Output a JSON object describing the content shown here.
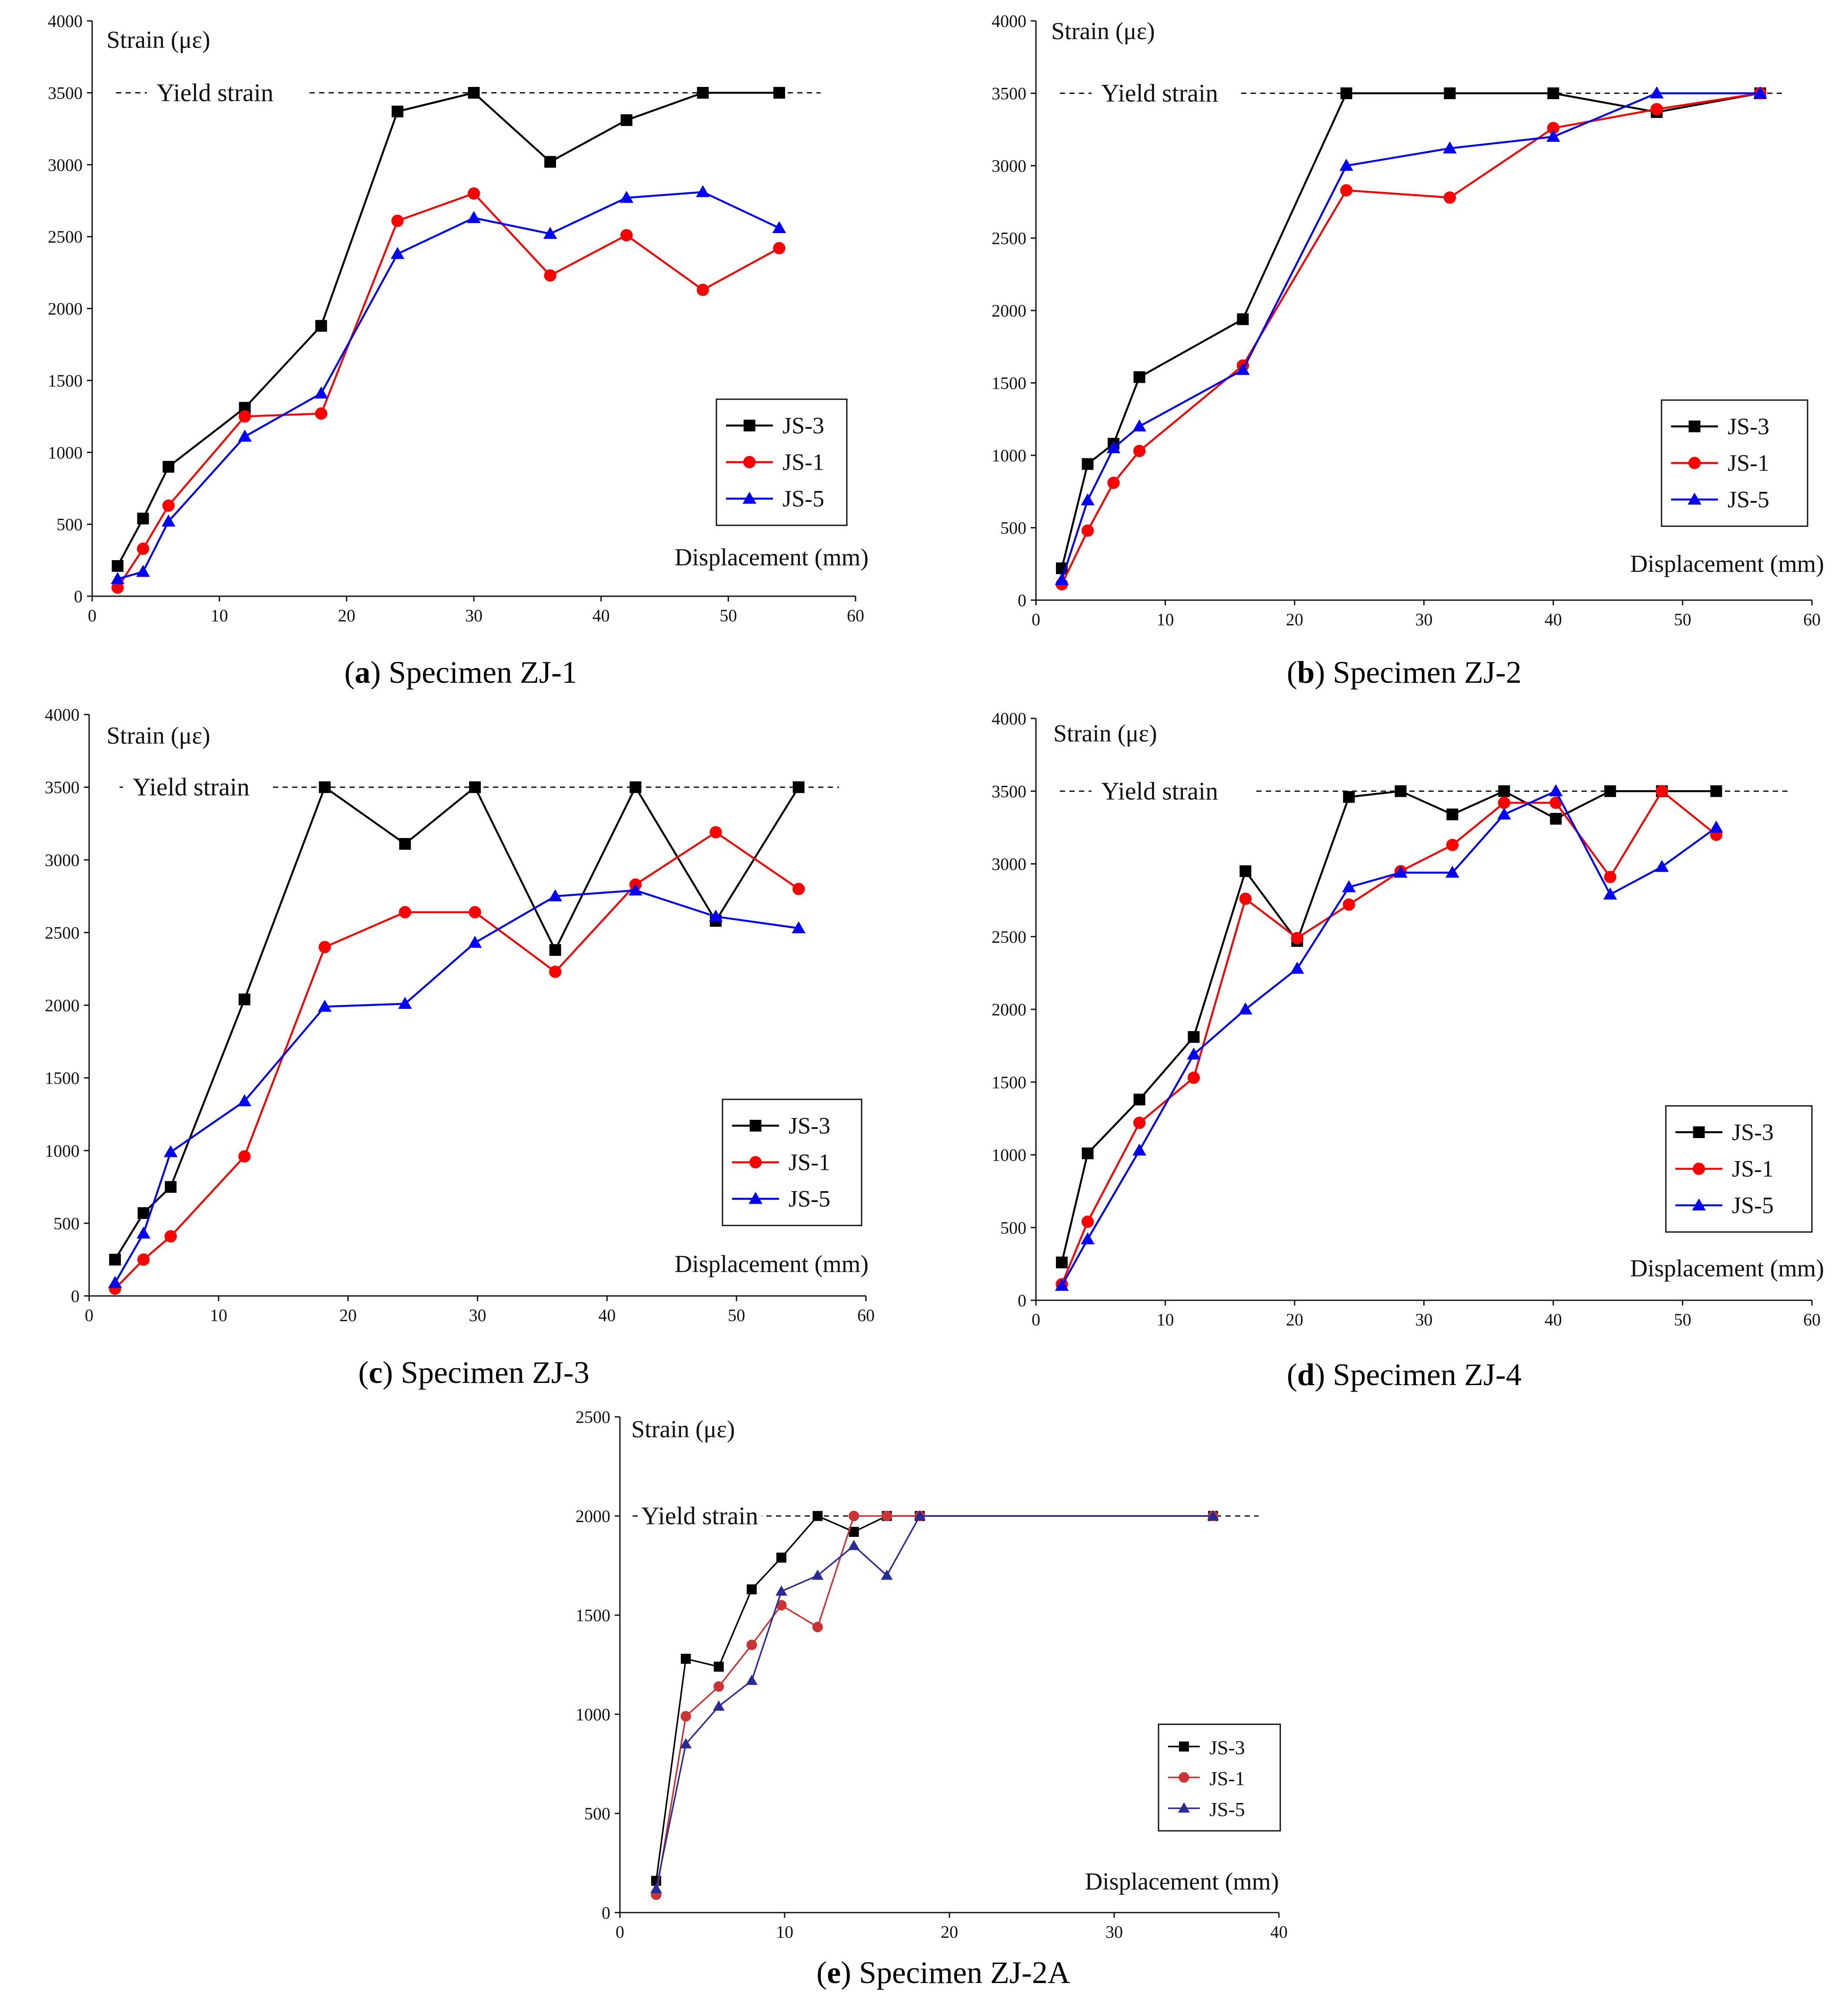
{
  "chart_data": [
    {
      "type": "line",
      "panel": "a",
      "caption_letter": "a",
      "caption_text": "Specimen ZJ-1",
      "ylabel": "Strain (με)",
      "xlabel": "Displacement (mm)",
      "yield_label": "Yield strain",
      "yield_value": 3500,
      "xlim": [
        0,
        60
      ],
      "ylim": [
        0,
        4000
      ],
      "xticks": [
        0,
        10,
        20,
        30,
        40,
        50,
        60
      ],
      "yticks": [
        0,
        500,
        1000,
        1500,
        2000,
        2500,
        3000,
        3500,
        4000
      ],
      "series": [
        {
          "name": "JS-3",
          "color": "#000000",
          "marker": "square",
          "x": [
            2,
            4,
            6,
            12,
            18,
            24,
            30,
            36,
            42,
            48,
            54
          ],
          "y": [
            210,
            540,
            900,
            1310,
            1880,
            3370,
            3500,
            3020,
            3310,
            3500,
            3500
          ]
        },
        {
          "name": "JS-1",
          "color": "#ff0000",
          "marker": "circle",
          "x": [
            2,
            4,
            6,
            12,
            18,
            24,
            30,
            36,
            42,
            48,
            54
          ],
          "y": [
            60,
            330,
            630,
            1250,
            1270,
            2610,
            2800,
            2230,
            2510,
            2130,
            2420
          ]
        },
        {
          "name": "JS-5",
          "color": "#0000ff",
          "marker": "triangle",
          "x": [
            2,
            4,
            6,
            12,
            18,
            24,
            30,
            36,
            42,
            48,
            54
          ],
          "y": [
            120,
            170,
            520,
            1110,
            1410,
            2380,
            2630,
            2520,
            2770,
            2810,
            2560
          ]
        }
      ]
    },
    {
      "type": "line",
      "panel": "b",
      "caption_letter": "b",
      "caption_text": "Specimen ZJ-2",
      "ylabel": "Strain (με)",
      "xlabel": "Displacement (mm)",
      "yield_label": "Yield strain",
      "yield_value": 3500,
      "xlim": [
        0,
        60
      ],
      "ylim": [
        0,
        4000
      ],
      "xticks": [
        0,
        10,
        20,
        30,
        40,
        50,
        60
      ],
      "yticks": [
        0,
        500,
        1000,
        1500,
        2000,
        2500,
        3000,
        3500,
        4000
      ],
      "series": [
        {
          "name": "JS-3",
          "color": "#000000",
          "marker": "square",
          "x": [
            2,
            4,
            6,
            8,
            16,
            24,
            32,
            40,
            48,
            56
          ],
          "y": [
            220,
            940,
            1080,
            1540,
            1940,
            3500,
            3500,
            3500,
            3370,
            3500
          ]
        },
        {
          "name": "JS-1",
          "color": "#ff0000",
          "marker": "circle",
          "x": [
            2,
            4,
            6,
            8,
            16,
            24,
            32,
            40,
            48,
            56
          ],
          "y": [
            110,
            480,
            810,
            1030,
            1620,
            2830,
            2780,
            3260,
            3390,
            3500
          ]
        },
        {
          "name": "JS-5",
          "color": "#0000ff",
          "marker": "triangle",
          "x": [
            2,
            4,
            6,
            8,
            16,
            24,
            32,
            40,
            48,
            56
          ],
          "y": [
            140,
            690,
            1050,
            1200,
            1590,
            3000,
            3120,
            3200,
            3500,
            3500
          ]
        }
      ]
    },
    {
      "type": "line",
      "panel": "c",
      "caption_letter": "c",
      "caption_text": "Specimen ZJ-3",
      "ylabel": "Strain (με)",
      "xlabel": "Displacement (mm)",
      "yield_label": "Yield strain",
      "yield_value": 3500,
      "xlim": [
        0,
        60
      ],
      "ylim": [
        0,
        4000
      ],
      "xticks": [
        0,
        10,
        20,
        30,
        40,
        50,
        60
      ],
      "yticks": [
        0,
        500,
        1000,
        1500,
        2000,
        2500,
        3000,
        3500,
        4000
      ],
      "series": [
        {
          "name": "JS-3",
          "color": "#000000",
          "marker": "square",
          "x": [
            2,
            4.2,
            6.3,
            12,
            18.2,
            24.4,
            29.8,
            36,
            42.2,
            48.4,
            54.8
          ],
          "y": [
            250,
            570,
            750,
            2040,
            3500,
            3110,
            3500,
            2380,
            3500,
            2580,
            3500
          ]
        },
        {
          "name": "JS-1",
          "color": "#ff0000",
          "marker": "circle",
          "x": [
            2,
            4.2,
            6.3,
            12,
            18.2,
            24.4,
            29.8,
            36,
            42.2,
            48.4,
            54.8
          ],
          "y": [
            50,
            250,
            410,
            960,
            2400,
            2640,
            2640,
            2230,
            2830,
            3190,
            2800
          ]
        },
        {
          "name": "JS-5",
          "color": "#0000ff",
          "marker": "triangle",
          "x": [
            2,
            4.2,
            6.3,
            12,
            18.2,
            24.4,
            29.8,
            36,
            42.2,
            48.4,
            54.8
          ],
          "y": [
            90,
            430,
            990,
            1340,
            1990,
            2010,
            2430,
            2750,
            2790,
            2610,
            2530
          ]
        }
      ]
    },
    {
      "type": "line",
      "panel": "d",
      "caption_letter": "d",
      "caption_text": "Specimen ZJ-4",
      "ylabel": "Strain (με)",
      "xlabel": "Displacement (mm)",
      "yield_label": "Yield strain",
      "yield_value": 3500,
      "xlim": [
        0,
        60
      ],
      "ylim": [
        0,
        4000
      ],
      "xticks": [
        0,
        10,
        20,
        30,
        40,
        50,
        60
      ],
      "yticks": [
        0,
        500,
        1000,
        1500,
        2000,
        2500,
        3000,
        3500,
        4000
      ],
      "series": [
        {
          "name": "JS-3",
          "color": "#000000",
          "marker": "square",
          "x": [
            2,
            4,
            8,
            12.2,
            16.2,
            20.2,
            24.2,
            28.2,
            32.2,
            36.2,
            40.2,
            44.4,
            48.4,
            52.6
          ],
          "y": [
            260,
            1010,
            1380,
            1810,
            2950,
            2470,
            3460,
            3500,
            3340,
            3500,
            3310,
            3500,
            3500,
            3500
          ]
        },
        {
          "name": "JS-1",
          "color": "#ff0000",
          "marker": "circle",
          "x": [
            2,
            4,
            8,
            12.2,
            16.2,
            20.2,
            24.2,
            28.2,
            32.2,
            36.2,
            40.2,
            44.4,
            48.4,
            52.6
          ],
          "y": [
            110,
            540,
            1220,
            1530,
            2760,
            2490,
            2720,
            2950,
            3130,
            3420,
            3420,
            2910,
            3500,
            3200
          ]
        },
        {
          "name": "JS-5",
          "color": "#0000ff",
          "marker": "triangle",
          "x": [
            2,
            4,
            8,
            12.2,
            16.2,
            20.2,
            24.2,
            28.2,
            32.2,
            36.2,
            40.2,
            44.4,
            48.4,
            52.6
          ],
          "y": [
            100,
            420,
            1030,
            1690,
            2000,
            2280,
            2840,
            2940,
            2940,
            3340,
            3500,
            2790,
            2980,
            3250
          ]
        }
      ]
    },
    {
      "type": "line",
      "panel": "e",
      "caption_letter": "e",
      "caption_text": "Specimen ZJ-2A",
      "ylabel": "Strain (με)",
      "xlabel": "Displacement (mm)",
      "yield_label": "Yield strain",
      "yield_value": 2000,
      "xlim": [
        0,
        40
      ],
      "ylim": [
        0,
        2500
      ],
      "xticks": [
        0,
        10,
        20,
        30,
        40
      ],
      "yticks": [
        0,
        500,
        1000,
        1500,
        2000,
        2500
      ],
      "series": [
        {
          "name": "JS-3",
          "color": "#000000",
          "marker": "square",
          "x": [
            2.2,
            4,
            6,
            8,
            9.8,
            12,
            14.2,
            16.2,
            18.2,
            36
          ],
          "y": [
            160,
            1280,
            1240,
            1630,
            1790,
            2000,
            1920,
            2000,
            2000,
            2000
          ]
        },
        {
          "name": "JS-1",
          "color": "#cc3333",
          "marker": "circle",
          "x": [
            2.2,
            4,
            6,
            8,
            9.8,
            12,
            14.2,
            16.2,
            18.2,
            36
          ],
          "y": [
            90,
            990,
            1140,
            1350,
            1550,
            1440,
            2000,
            2000,
            2000,
            2000
          ]
        },
        {
          "name": "JS-5",
          "color": "#2a2a99",
          "marker": "triangle",
          "x": [
            2.2,
            4,
            6,
            8,
            9.8,
            12,
            14.2,
            16.2,
            18.2,
            36
          ],
          "y": [
            120,
            850,
            1040,
            1170,
            1620,
            1700,
            1850,
            1700,
            2000,
            2000
          ]
        }
      ]
    }
  ]
}
